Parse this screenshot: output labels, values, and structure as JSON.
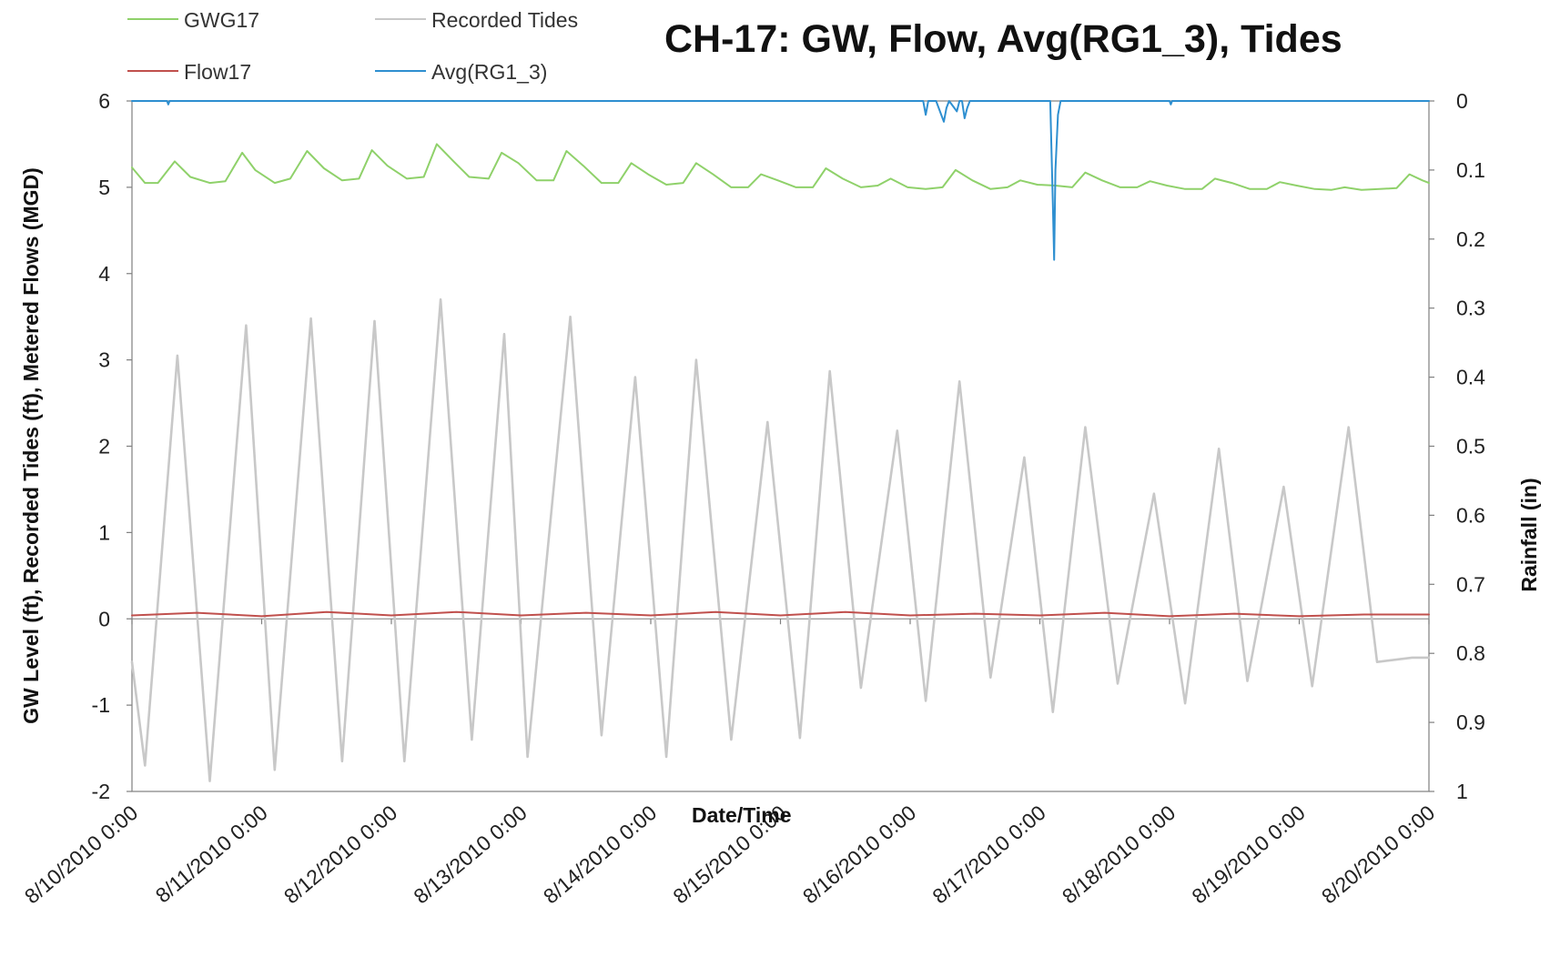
{
  "chart_data": {
    "type": "line",
    "title": "CH-17: GW, Flow, Avg(RG1_3), Tides",
    "xlabel": "Date/Time",
    "ylabel": "GW Level (ft), Recorded Tides (ft), Metered Flows (MGD)",
    "y2label": "Rainfall (in)",
    "x_ticks": [
      "8/10/2010 0:00",
      "8/11/2010 0:00",
      "8/12/2010 0:00",
      "8/13/2010 0:00",
      "8/14/2010 0:00",
      "8/15/2010 0:00",
      "8/16/2010 0:00",
      "8/17/2010 0:00",
      "8/18/2010 0:00",
      "8/19/2010 0:00",
      "8/20/2010 0:00"
    ],
    "x_range_days": [
      0,
      10
    ],
    "ylim": [
      -2,
      6
    ],
    "y_ticks": [
      "-2",
      "-1",
      "0",
      "1",
      "2",
      "3",
      "4",
      "5",
      "6"
    ],
    "y2lim": [
      1,
      0
    ],
    "y2_ticks": [
      "0",
      "0.1",
      "0.2",
      "0.3",
      "0.4",
      "0.5",
      "0.6",
      "0.7",
      "0.8",
      "0.9",
      "1"
    ],
    "grid": false,
    "legend_position": "top-left",
    "series": [
      {
        "name": "GWG17",
        "color": "#8fd16a",
        "axis": "left",
        "x": [
          0,
          0.1,
          0.2,
          0.33,
          0.45,
          0.6,
          0.72,
          0.85,
          0.95,
          1.1,
          1.22,
          1.35,
          1.48,
          1.62,
          1.75,
          1.85,
          1.97,
          2.12,
          2.25,
          2.35,
          2.48,
          2.6,
          2.75,
          2.85,
          2.98,
          3.12,
          3.25,
          3.35,
          3.48,
          3.62,
          3.75,
          3.85,
          3.98,
          4.12,
          4.25,
          4.35,
          4.48,
          4.62,
          4.75,
          4.85,
          4.98,
          5.12,
          5.25,
          5.35,
          5.48,
          5.62,
          5.75,
          5.85,
          5.98,
          6.12,
          6.25,
          6.35,
          6.48,
          6.62,
          6.75,
          6.85,
          6.98,
          7.12,
          7.25,
          7.35,
          7.48,
          7.62,
          7.75,
          7.85,
          7.98,
          8.12,
          8.25,
          8.35,
          8.48,
          8.62,
          8.75,
          8.85,
          8.98,
          9.12,
          9.25,
          9.35,
          9.48,
          9.62,
          9.75,
          9.85,
          9.95,
          10.0
        ],
        "y": [
          5.23,
          5.05,
          5.05,
          5.3,
          5.12,
          5.05,
          5.07,
          5.4,
          5.2,
          5.05,
          5.1,
          5.42,
          5.22,
          5.08,
          5.1,
          5.43,
          5.25,
          5.1,
          5.12,
          5.5,
          5.3,
          5.12,
          5.1,
          5.4,
          5.28,
          5.08,
          5.08,
          5.42,
          5.25,
          5.05,
          5.05,
          5.28,
          5.15,
          5.03,
          5.05,
          5.28,
          5.15,
          5.0,
          5.0,
          5.15,
          5.08,
          5.0,
          5.0,
          5.22,
          5.1,
          5.0,
          5.02,
          5.1,
          5.0,
          4.98,
          5.0,
          5.2,
          5.08,
          4.98,
          5.0,
          5.08,
          5.03,
          5.02,
          5.0,
          5.17,
          5.08,
          5.0,
          5.0,
          5.07,
          5.02,
          4.98,
          4.98,
          5.1,
          5.05,
          4.98,
          4.98,
          5.06,
          5.02,
          4.98,
          4.97,
          5.0,
          4.97,
          4.98,
          4.99,
          5.15,
          5.08,
          5.05
        ]
      },
      {
        "name": "Recorded Tides",
        "color": "#c8c8c8",
        "axis": "left",
        "x": [
          0,
          0.1,
          0.35,
          0.6,
          0.88,
          1.1,
          1.38,
          1.62,
          1.87,
          2.1,
          2.38,
          2.62,
          2.87,
          3.05,
          3.38,
          3.62,
          3.88,
          4.12,
          4.35,
          4.62,
          4.9,
          5.15,
          5.38,
          5.62,
          5.9,
          6.12,
          6.38,
          6.62,
          6.88,
          7.1,
          7.35,
          7.6,
          7.88,
          8.12,
          8.38,
          8.6,
          8.88,
          9.1,
          9.38,
          9.6,
          9.87,
          10.0
        ],
        "y": [
          -0.5,
          -1.7,
          3.05,
          -1.88,
          3.4,
          -1.75,
          3.48,
          -1.65,
          3.45,
          -1.65,
          3.7,
          -1.4,
          3.3,
          -1.6,
          3.5,
          -1.35,
          2.8,
          -1.6,
          3.0,
          -1.4,
          2.28,
          -1.38,
          2.87,
          -0.8,
          2.18,
          -0.95,
          2.75,
          -0.68,
          1.87,
          -1.08,
          2.22,
          -0.75,
          1.45,
          -0.98,
          1.97,
          -0.72,
          1.53,
          -0.78,
          2.22,
          -0.5,
          -0.45,
          -0.45
        ]
      },
      {
        "name": "Flow17",
        "color": "#c0504d",
        "axis": "left",
        "x": [
          0,
          0.5,
          1.0,
          1.5,
          2.0,
          2.5,
          3.0,
          3.5,
          4.0,
          4.5,
          5.0,
          5.5,
          6.0,
          6.5,
          7.0,
          7.5,
          8.0,
          8.5,
          9.0,
          9.5,
          10.0
        ],
        "y": [
          0.04,
          0.07,
          0.03,
          0.08,
          0.04,
          0.08,
          0.04,
          0.07,
          0.04,
          0.08,
          0.04,
          0.08,
          0.04,
          0.06,
          0.04,
          0.07,
          0.03,
          0.06,
          0.03,
          0.05,
          0.05
        ]
      },
      {
        "name": "Avg(RG1_3)",
        "color": "#2e8fd0",
        "axis": "right",
        "x": [
          0,
          0.27,
          0.28,
          0.29,
          6.1,
          6.12,
          6.14,
          6.16,
          6.2,
          6.26,
          6.28,
          6.3,
          6.34,
          6.36,
          6.38,
          6.4,
          6.42,
          6.44,
          6.46,
          7.08,
          7.1,
          7.11,
          7.12,
          7.14,
          7.16,
          8.0,
          8.01,
          8.02,
          10.0
        ],
        "y": [
          0,
          0,
          0.005,
          0,
          0,
          0.02,
          0,
          0,
          0,
          0.03,
          0.01,
          0,
          0.01,
          0.015,
          0,
          0,
          0.025,
          0.01,
          0,
          0,
          0.15,
          0.23,
          0.1,
          0.02,
          0,
          0,
          0.005,
          0,
          0
        ]
      }
    ]
  }
}
